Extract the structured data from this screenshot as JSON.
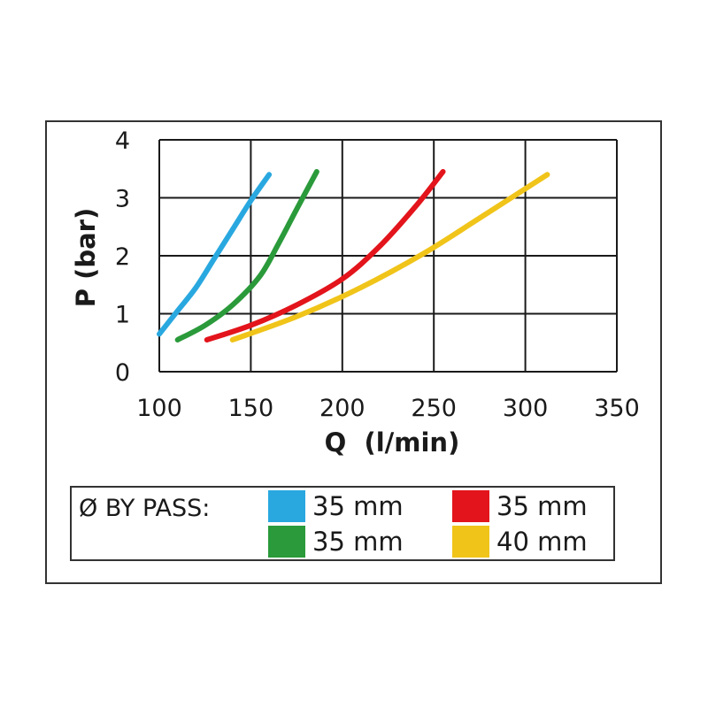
{
  "chart_data": {
    "type": "line",
    "title": "",
    "xlabel": "Q  (l/min)",
    "ylabel": "P (bar)",
    "xlim": [
      100,
      350
    ],
    "ylim": [
      0,
      4
    ],
    "x_ticks": [
      "100",
      "150",
      "200",
      "250",
      "300",
      "350"
    ],
    "y_ticks": [
      "0",
      "1",
      "2",
      "3",
      "4"
    ],
    "grid": true,
    "series": [
      {
        "name": "35 mm",
        "color": "#29a8e0",
        "x": [
          100,
          110,
          120,
          130,
          140,
          150,
          160
        ],
        "y": [
          0.65,
          1.05,
          1.45,
          1.95,
          2.45,
          2.95,
          3.4
        ]
      },
      {
        "name": "35 mm",
        "color": "#2a9a3a",
        "x": [
          110,
          125,
          140,
          155,
          165,
          175,
          186
        ],
        "y": [
          0.55,
          0.8,
          1.15,
          1.65,
          2.2,
          2.8,
          3.45
        ]
      },
      {
        "name": "35 mm",
        "color": "#e3141b",
        "x": [
          126,
          150,
          175,
          200,
          220,
          240,
          255
        ],
        "y": [
          0.55,
          0.8,
          1.15,
          1.6,
          2.15,
          2.85,
          3.45
        ]
      },
      {
        "name": "40 mm",
        "color": "#f0c419",
        "x": [
          140,
          175,
          210,
          245,
          275,
          312
        ],
        "y": [
          0.55,
          0.95,
          1.45,
          2.05,
          2.65,
          3.4
        ]
      }
    ]
  },
  "legend": {
    "title": "Ø BY PASS:",
    "items": [
      {
        "label": "35 mm",
        "color": "#29a8e0"
      },
      {
        "label": "35 mm",
        "color": "#e3141b"
      },
      {
        "label": "35 mm",
        "color": "#2a9a3a"
      },
      {
        "label": "40 mm",
        "color": "#f0c419"
      }
    ]
  }
}
